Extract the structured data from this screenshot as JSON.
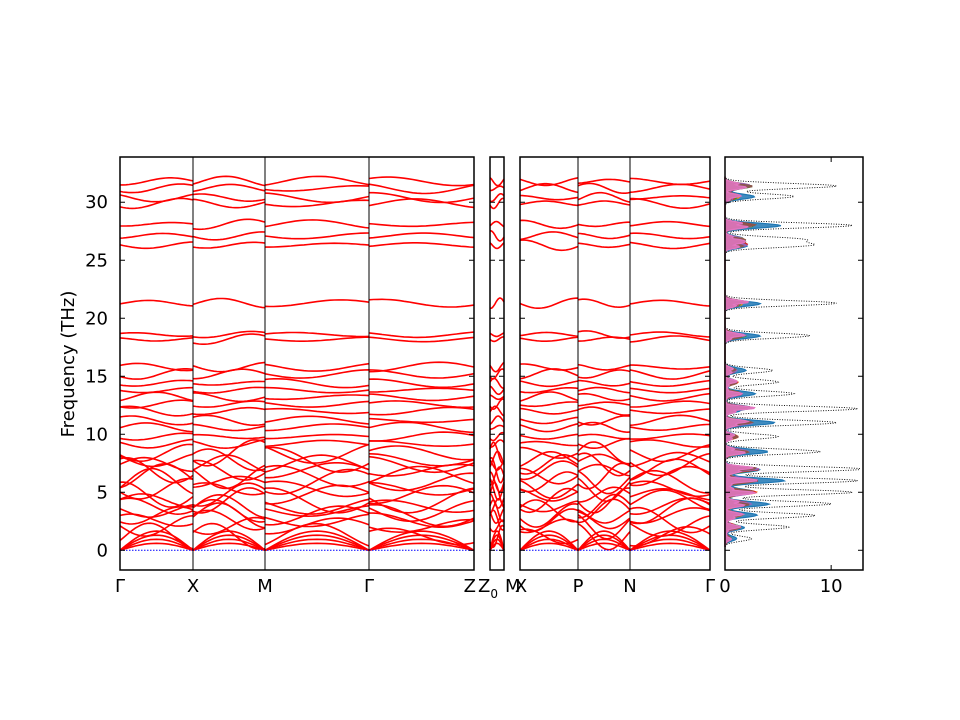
{
  "chart_data": [
    {
      "type": "line",
      "panel": "band-structure",
      "title": "",
      "xlabel": "",
      "ylabel": "Frequency (THz)",
      "ylim": [
        -1.7,
        33.9
      ],
      "yticks": [
        0,
        5,
        10,
        15,
        20,
        25,
        30
      ],
      "xticks": [
        "Γ",
        "X",
        "M",
        "Γ",
        "Z",
        "Z0",
        "M",
        "X",
        "P",
        "N",
        "Γ"
      ],
      "segments": [
        {
          "from": "Γ",
          "to": "X"
        },
        {
          "from": "X",
          "to": "M"
        },
        {
          "from": "M",
          "to": "Γ"
        },
        {
          "from": "Γ",
          "to": "Z"
        },
        {
          "from": "Z",
          "to": "Z0"
        },
        {
          "from": "Z0",
          "to": "M"
        },
        {
          "from": "X",
          "to": "P"
        },
        {
          "from": "P",
          "to": "N"
        },
        {
          "from": "N",
          "to": "Γ"
        }
      ],
      "band_color": "#ff0000",
      "zero_line_color": "#0000ff",
      "band_levels_gamma_thz": [
        0,
        0,
        0,
        0.6,
        1.2,
        2.1,
        2.6,
        3.0,
        3.4,
        3.8,
        4.3,
        4.8,
        5.3,
        5.9,
        6.4,
        6.9,
        7.4,
        7.8,
        8.4,
        9.2,
        9.8,
        10.6,
        11.2,
        12.0,
        12.6,
        13.2,
        13.8,
        14.4,
        15.2,
        15.8,
        18.2,
        18.6,
        21.3,
        26.3,
        27.1,
        28.1,
        29.9,
        30.4,
        31.2,
        31.8
      ]
    },
    {
      "type": "area",
      "panel": "density-of-states",
      "xlabel": "",
      "ylabel": "",
      "xlim": [
        0,
        13
      ],
      "ylim": [
        -1.7,
        33.9
      ],
      "xticks": [
        0,
        10
      ],
      "total_dos_style": "black dotted",
      "partial_colors": [
        "#1f77b4",
        "#ff7f0e",
        "#2ca02c",
        "#d62728",
        "#9467bd",
        "#8c564b",
        "#e377c2"
      ],
      "total_dos_peaks": [
        {
          "freq": 31.4,
          "value": 10.5
        },
        {
          "freq": 30.5,
          "value": 6.5
        },
        {
          "freq": 28.0,
          "value": 12.0
        },
        {
          "freq": 26.8,
          "value": 7.0
        },
        {
          "freq": 26.3,
          "value": 7.8
        },
        {
          "freq": 21.3,
          "value": 10.5
        },
        {
          "freq": 18.5,
          "value": 8.0
        },
        {
          "freq": 15.5,
          "value": 4.5
        },
        {
          "freq": 14.5,
          "value": 5.0
        },
        {
          "freq": 13.5,
          "value": 6.5
        },
        {
          "freq": 12.2,
          "value": 12.5
        },
        {
          "freq": 11.0,
          "value": 10.5
        },
        {
          "freq": 9.8,
          "value": 5.0
        },
        {
          "freq": 8.5,
          "value": 9.0
        },
        {
          "freq": 7.0,
          "value": 13.0
        },
        {
          "freq": 6.0,
          "value": 12.5
        },
        {
          "freq": 5.0,
          "value": 12.0
        },
        {
          "freq": 4.0,
          "value": 10.0
        },
        {
          "freq": 3.0,
          "value": 8.5
        },
        {
          "freq": 2.0,
          "value": 6.0
        },
        {
          "freq": 1.0,
          "value": 2.5
        }
      ]
    }
  ]
}
